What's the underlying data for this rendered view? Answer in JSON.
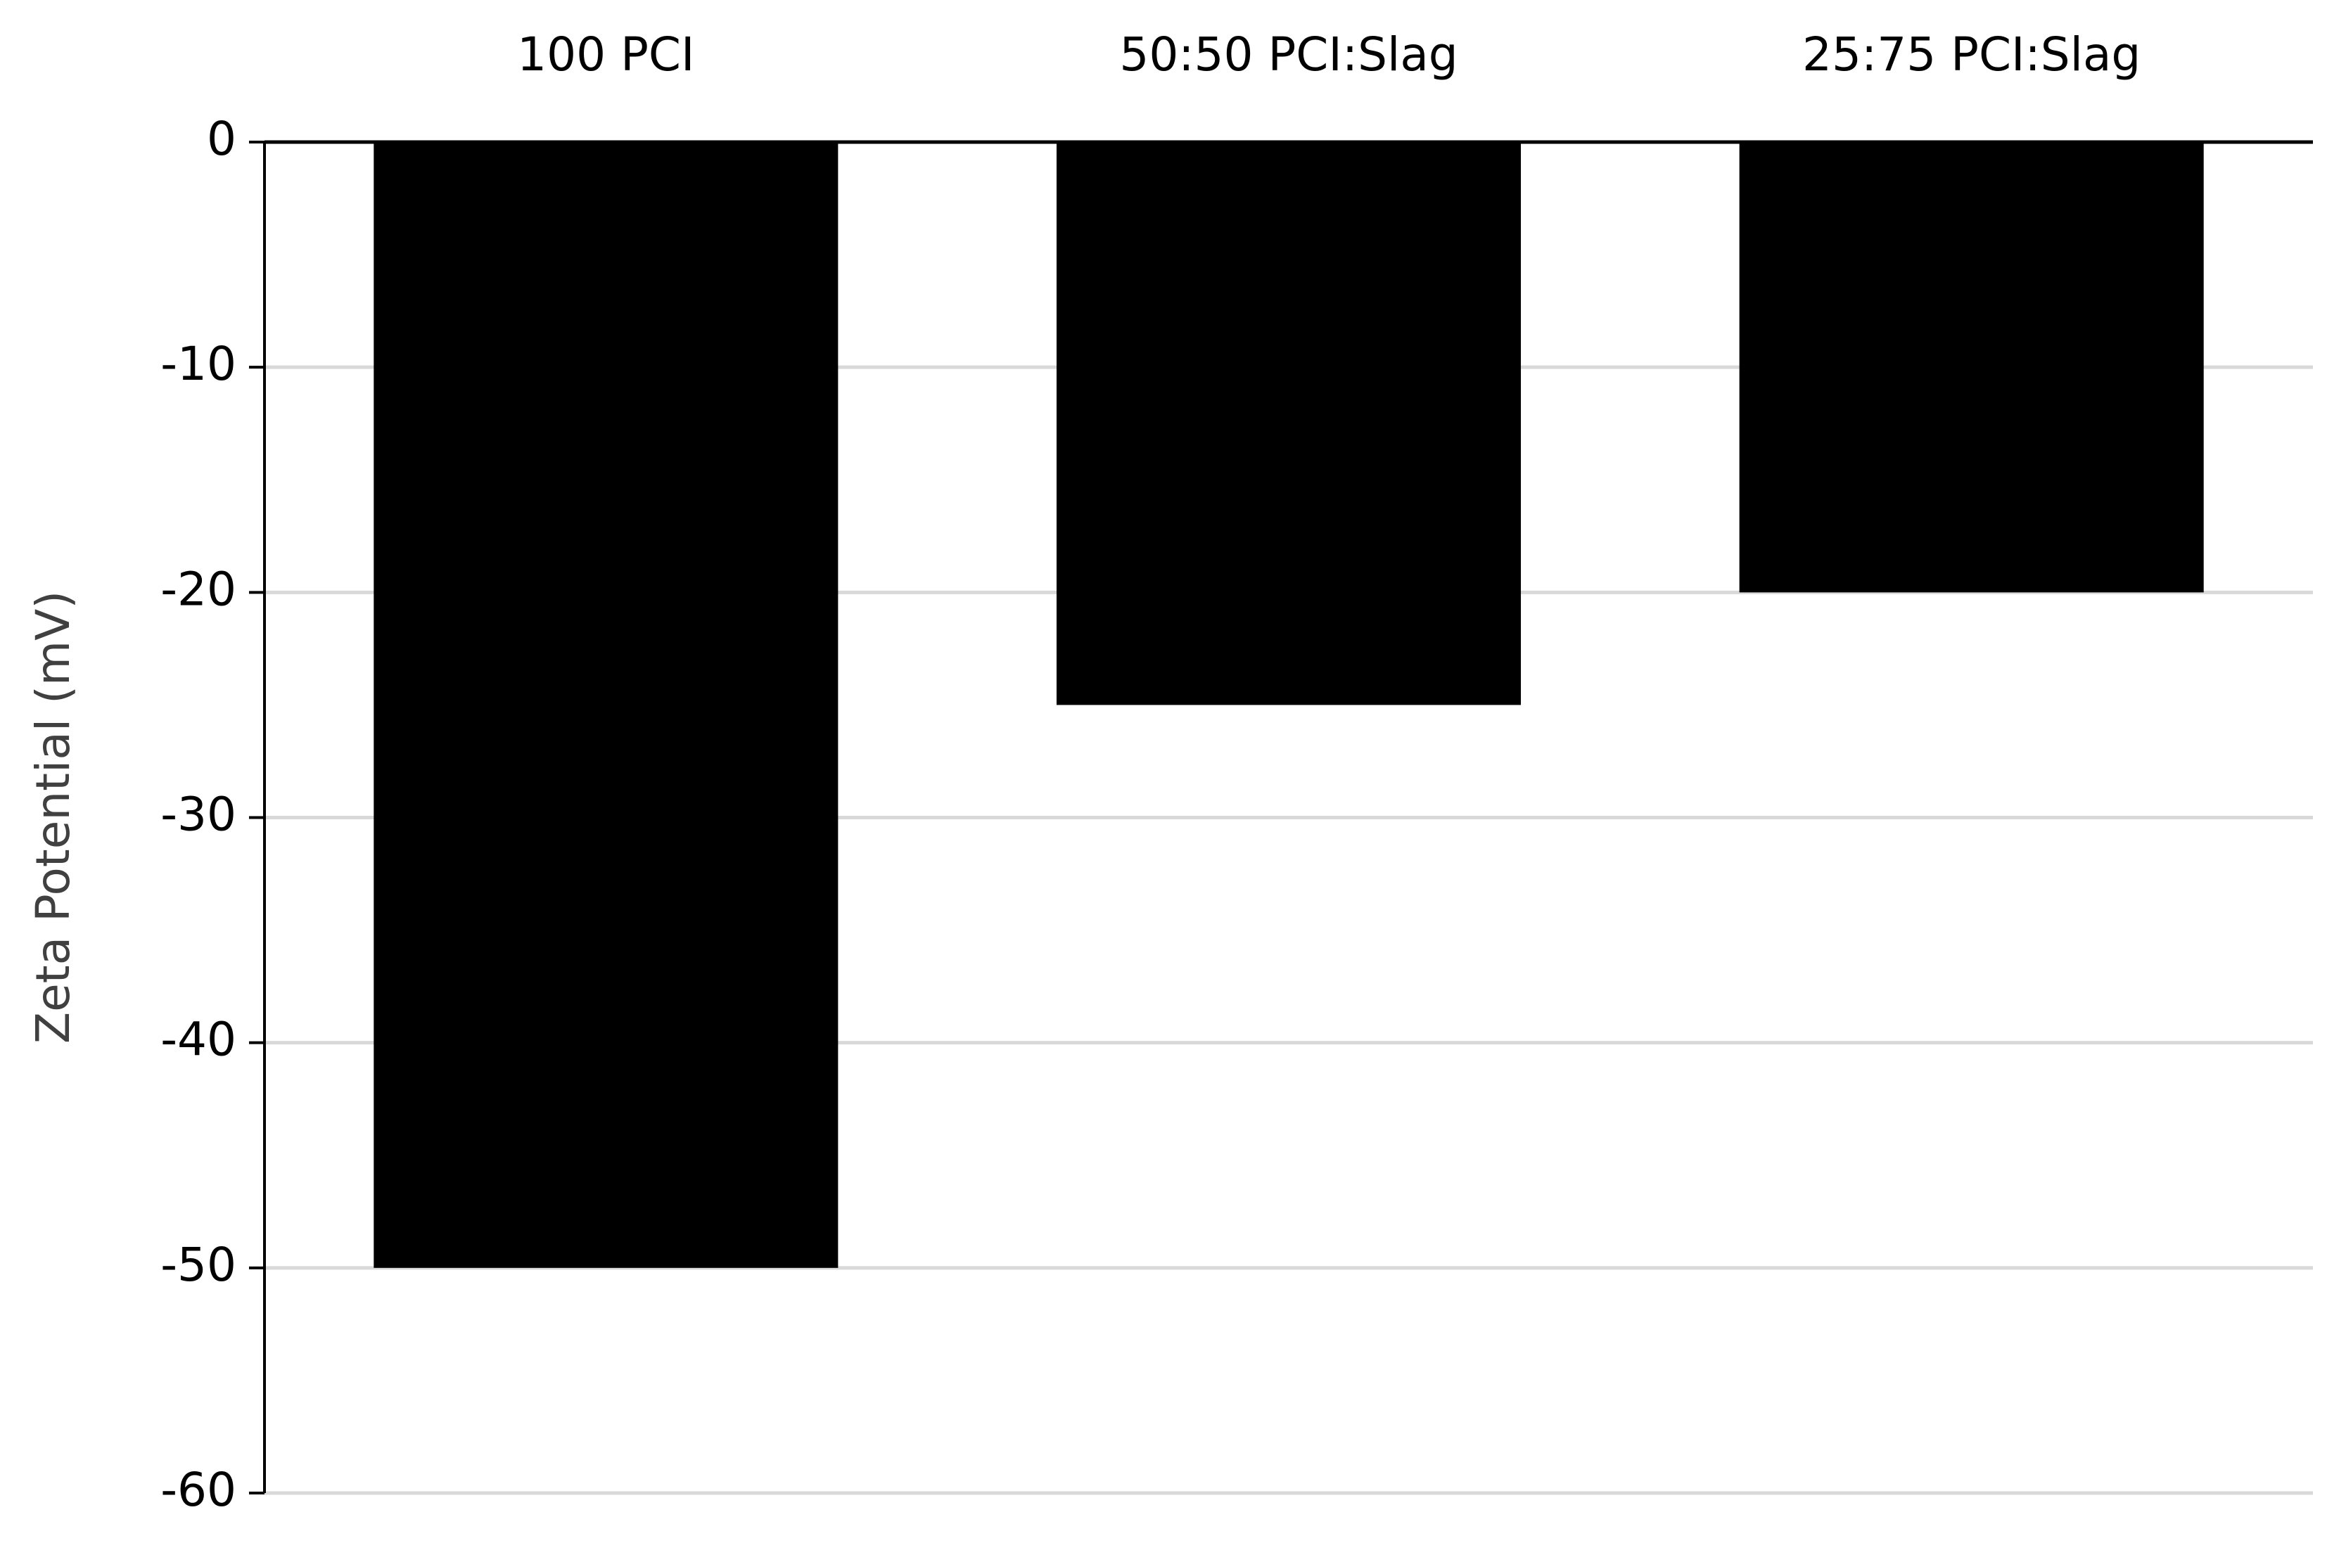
{
  "chart_data": {
    "type": "bar",
    "y_label": "Zeta Potential (mV)",
    "categories": [
      "100 PCI",
      "50:50 PCI:Slag",
      "25:75 PCI:Slag"
    ],
    "values": [
      -50,
      -25,
      -20
    ],
    "color": "#000000",
    "ylim": [
      -60,
      0
    ],
    "yticks": [
      0,
      -10,
      -20,
      -30,
      -40,
      -50,
      -60
    ],
    "grid": true
  }
}
